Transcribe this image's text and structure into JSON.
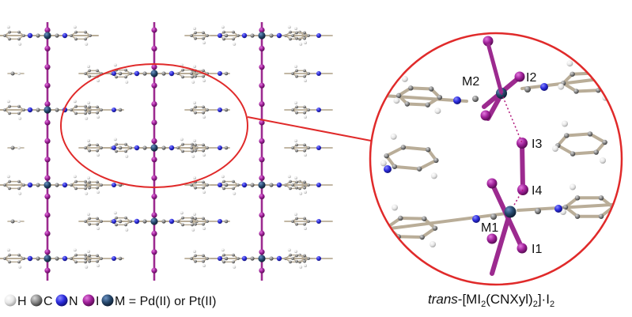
{
  "colors": {
    "H": "#e6e6e6",
    "C": "#8a8a8a",
    "N": "#2b2bdc",
    "I": "#a0219a",
    "M": "#27496e",
    "bond_tan": "#b9ad98",
    "iodine_rod": "#9c2a8f",
    "highlight": "#e02a2a",
    "contact": "#b0157a"
  },
  "atom_labels": {
    "m2": "M2",
    "i2": "I2",
    "i3": "I3",
    "i4": "I4",
    "m1": "M1",
    "i1": "I1"
  },
  "legend": {
    "h": "H",
    "c": "C",
    "n": "N",
    "i": "I",
    "m_eq": "M = Pd(II) or Pt(II)"
  },
  "formula": {
    "prefix": "trans",
    "body": "-[MI",
    "sub1": "2",
    "mid": "(CNXyl)",
    "sub2": "2",
    "close": "]·I",
    "sub3": "2"
  }
}
